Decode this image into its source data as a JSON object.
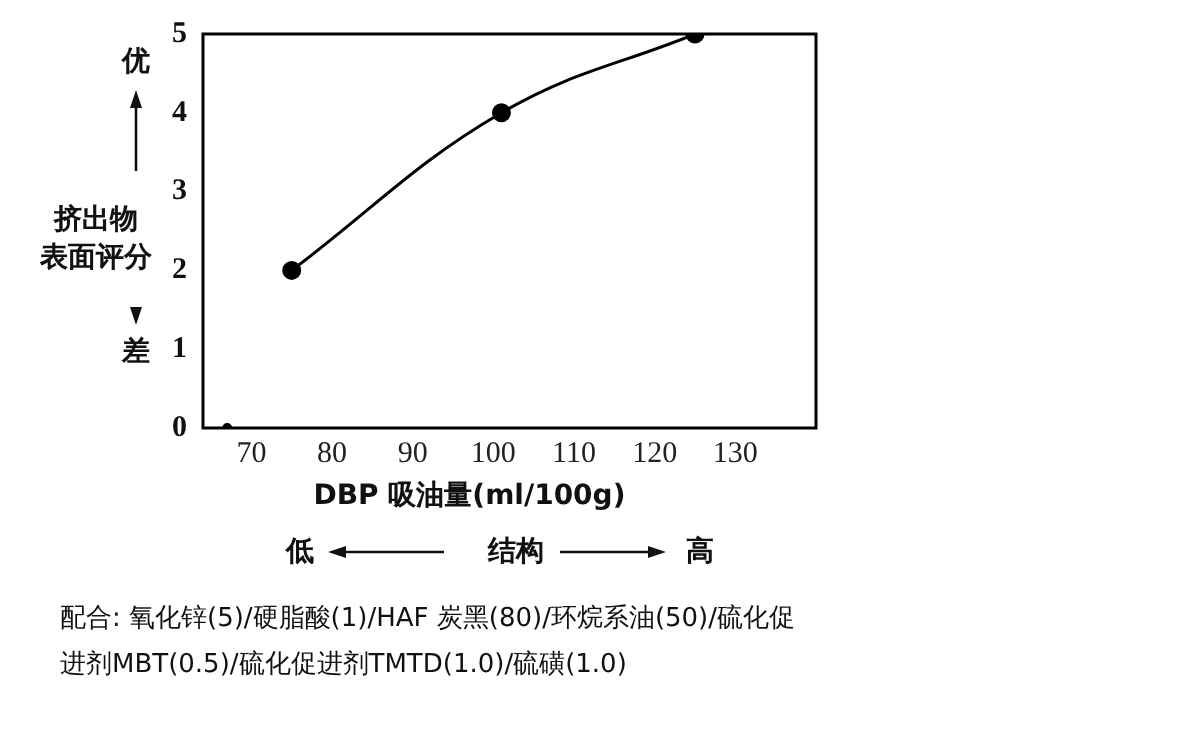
{
  "chart_data": {
    "type": "line",
    "ylabel": "挤出物表面评分",
    "xlabel": "DBP 吸油量(ml/100g)",
    "marker": "circle",
    "series": [
      {
        "color": "#000000",
        "x": [
          75,
          101,
          125
        ],
        "values": [
          2,
          4,
          5
        ]
      },
      {
        "type": "scatter",
        "color": "#000000",
        "x": [
          67
        ],
        "values": [
          0
        ]
      }
    ],
    "xlim": [
      64,
      140
    ],
    "xticks": [
      70,
      80,
      90,
      100,
      110,
      120,
      130
    ],
    "ylim": [
      0,
      5
    ],
    "yticks": [
      0,
      1,
      2,
      3,
      4,
      5
    ],
    "grid": false,
    "legend": false,
    "annotations": [
      "优",
      "差",
      "低",
      "结构",
      "高",
      "配合: 氧化锌(5)/硬脂酸(1)/HAF 炭黑(80)/环烷系油(50)/硫化促进剂MBT(0.5)/硫化促进剂TMTD(1.0)/硫磺(1.0)"
    ]
  }
}
